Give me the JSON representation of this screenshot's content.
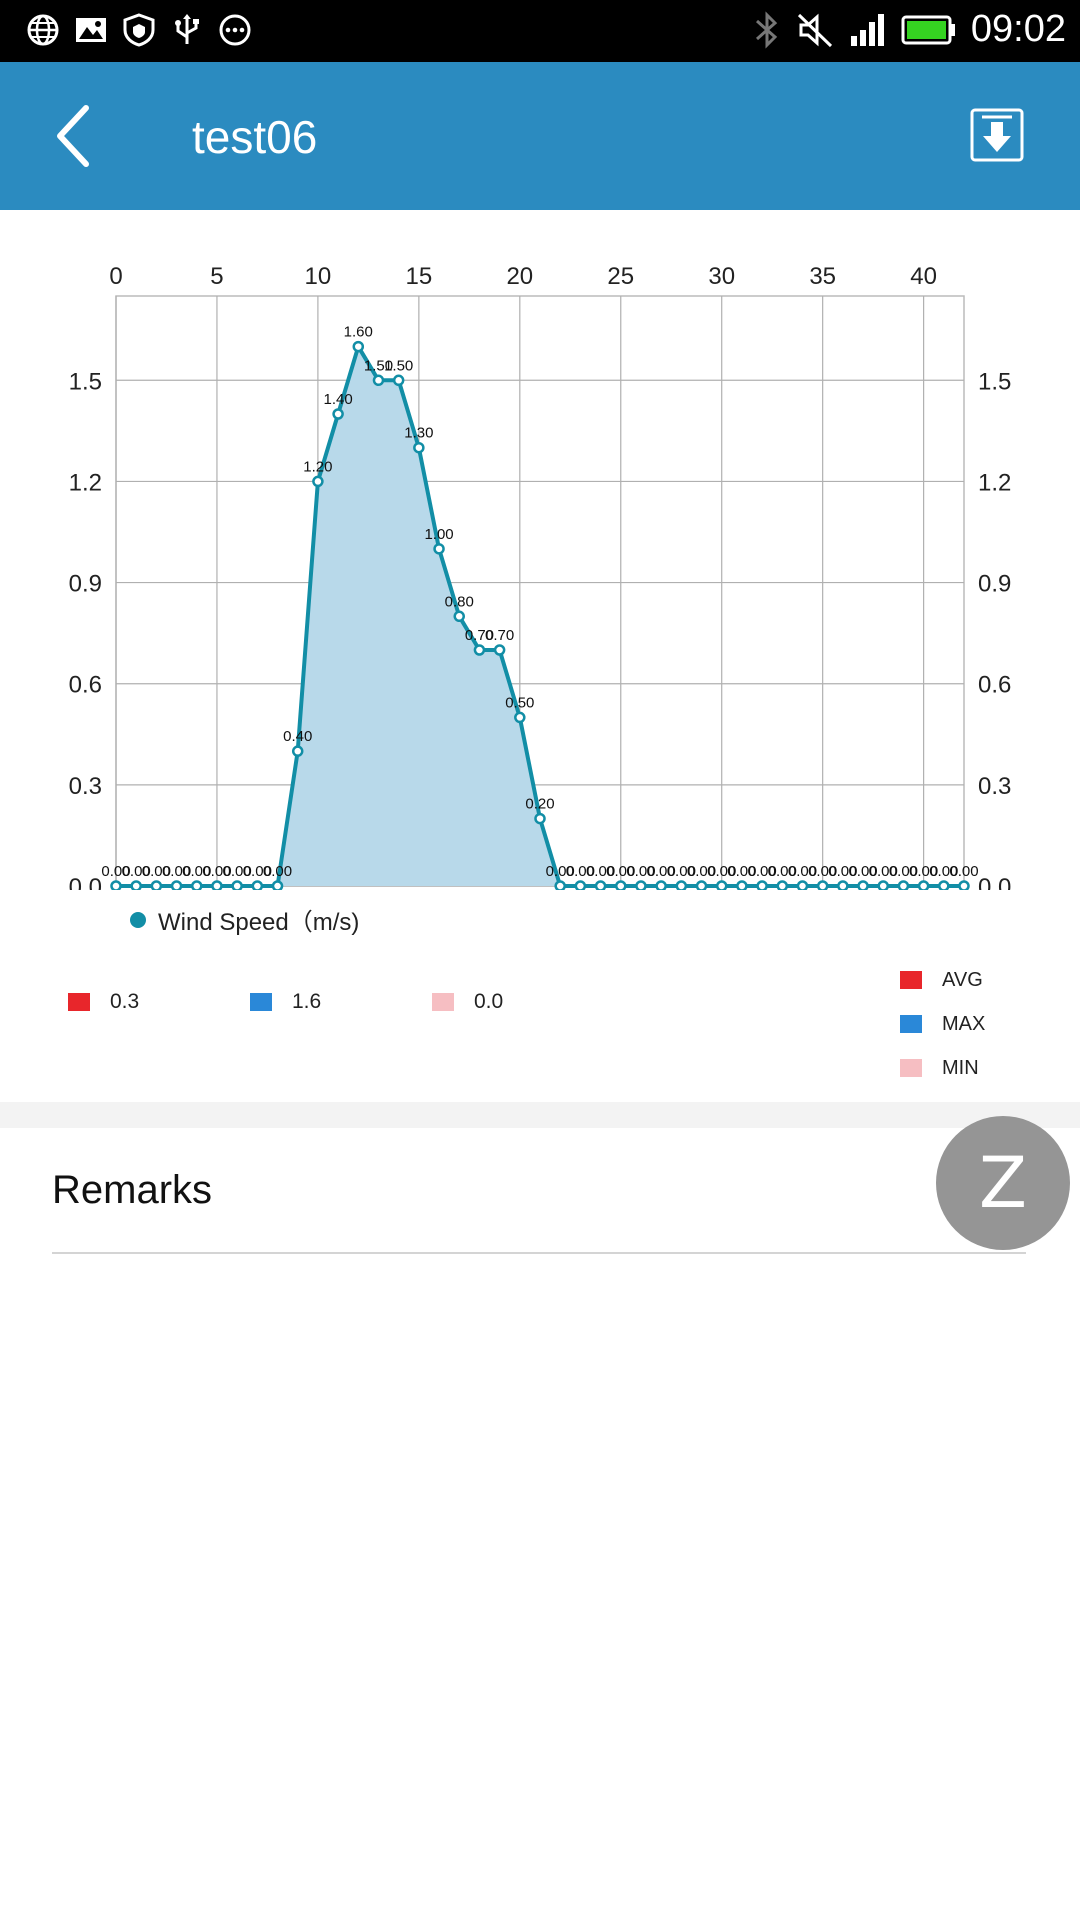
{
  "status_bar": {
    "time": "09:02",
    "left_icons": [
      "globe-icon",
      "image-icon",
      "shield-icon",
      "usb-icon",
      "more-icon"
    ],
    "right_icons": [
      "bluetooth-icon",
      "mute-icon",
      "signal-icon",
      "battery-icon"
    ]
  },
  "header": {
    "title": "test06",
    "back_icon": "chevron-left-icon",
    "download_icon": "download-icon",
    "color": "#2b8bc0"
  },
  "chart_data": {
    "type": "area",
    "x": [
      0,
      1,
      2,
      3,
      4,
      5,
      6,
      7,
      8,
      9,
      10,
      11,
      12,
      13,
      14,
      15,
      16,
      17,
      18,
      19,
      20,
      21,
      22,
      23,
      24,
      25,
      26,
      27,
      28,
      29,
      30,
      31,
      32,
      33,
      34,
      35,
      36,
      37,
      38,
      39,
      40,
      41,
      42
    ],
    "series": [
      {
        "name": "Wind Speed（m/s)",
        "color": "#128ea6",
        "fill": "#b8d9ea",
        "values": [
          0,
          0,
          0,
          0,
          0,
          0,
          0,
          0,
          0,
          0.4,
          1.2,
          1.4,
          1.6,
          1.5,
          1.5,
          1.3,
          1.0,
          0.8,
          0.7,
          0.7,
          0.5,
          0.2,
          0,
          0,
          0,
          0,
          0,
          0,
          0,
          0,
          0,
          0,
          0,
          0,
          0,
          0,
          0,
          0,
          0,
          0,
          0,
          0,
          0
        ]
      }
    ],
    "point_labels": [
      "0.00",
      "0.00",
      "0.00",
      "0.00",
      "0.00",
      "0.00",
      "0.00",
      "0.00",
      "0.00",
      "0.40",
      "1.20",
      "1.40",
      "1.60",
      "1.50",
      "1.50",
      "1.30",
      "1.00",
      "0.80",
      "0.70",
      "0.70",
      "0.50",
      "0.20",
      "0.00",
      "0.00",
      "0.00",
      "0.00",
      "0.00",
      "0.00",
      "0.00",
      "0.00",
      "0.00",
      "0.00",
      "0.00",
      "0.00",
      "0.00",
      "0.00",
      "0.00",
      "0.00",
      "0.00",
      "0.00",
      "0.00",
      "0.00",
      "0.00"
    ],
    "xlim": [
      0,
      42
    ],
    "ylim": [
      0,
      1.75
    ],
    "xticks": [
      "0",
      "5",
      "10",
      "15",
      "20",
      "25",
      "30",
      "35",
      "40"
    ],
    "yticks": [
      "0.0",
      "0.3",
      "0.6",
      "0.9",
      "1.2",
      "1.5"
    ],
    "x_axis_position": "top",
    "y_axis_both_sides": true,
    "grid": true,
    "legend_position": "bottom-left"
  },
  "stats": [
    {
      "label": "AVG",
      "value": "0.3",
      "color": "#e8262b"
    },
    {
      "label": "MAX",
      "value": "1.6",
      "color": "#2a88d8"
    },
    {
      "label": "MIN",
      "value": "0.0",
      "color": "#f6bec2"
    }
  ],
  "remarks": {
    "label": "Remarks"
  },
  "fab": {
    "label": "Z"
  }
}
